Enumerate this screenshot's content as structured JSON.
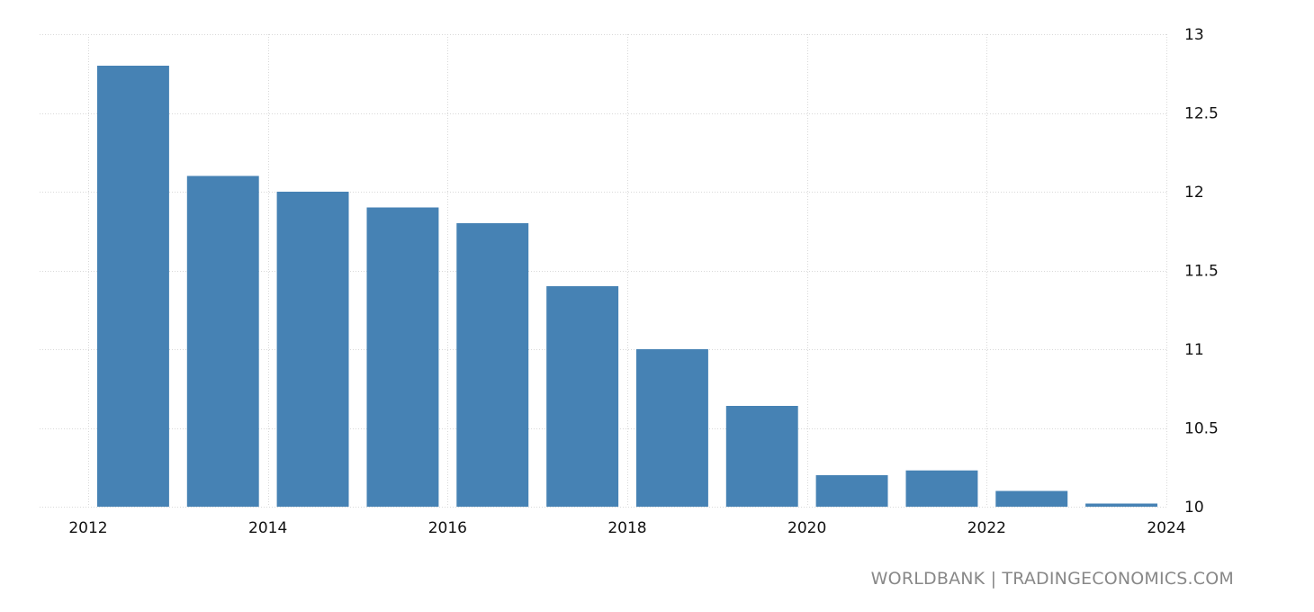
{
  "source_label": "WORLDBANK | TRADINGECONOMICS.COM",
  "chart_data": {
    "type": "bar",
    "title": "",
    "xlabel": "",
    "ylabel": "",
    "x": [
      2012,
      2013,
      2014,
      2015,
      2016,
      2017,
      2018,
      2019,
      2020,
      2021,
      2022,
      2023
    ],
    "values": [
      12.8,
      12.1,
      12.0,
      11.9,
      11.8,
      11.4,
      11.0,
      10.64,
      10.2,
      10.23,
      10.1,
      10.02
    ],
    "ylim": [
      10,
      13
    ],
    "xlim": [
      2012,
      2024
    ],
    "yticks": [
      10,
      10.5,
      11,
      11.5,
      12,
      12.5,
      13
    ],
    "ytick_labels": [
      "10",
      "10.5",
      "11",
      "11.5",
      "12",
      "12.5",
      "13"
    ],
    "xticks": [
      2012,
      2014,
      2016,
      2018,
      2020,
      2022,
      2024
    ],
    "xtick_labels": [
      "2012",
      "2014",
      "2016",
      "2018",
      "2020",
      "2022",
      "2024"
    ],
    "y_axis_position": "right",
    "grid": true,
    "legend": "none",
    "bar_color": "#4682b4"
  }
}
